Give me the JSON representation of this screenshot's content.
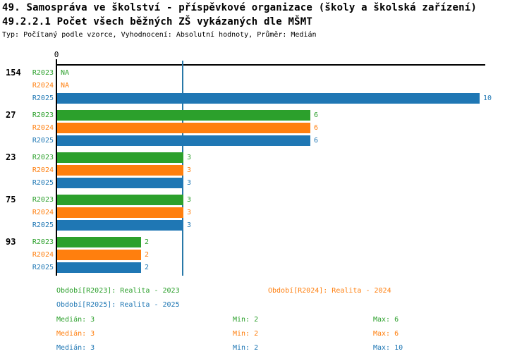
{
  "header": {
    "title_line1": "49. Samospráva ve školství - příspěvkové organizace (školy a školská zařízení)",
    "title_line2": "49.2.2.1 Počet všech běžných ZŠ vykázaných dle MŠMT",
    "meta": "Typ: Počítaný podle vzorce, Vyhodnocení: Absolutní hodnoty, Průměr: Medián"
  },
  "colors": {
    "R2023": "#2ca02c",
    "R2024": "#ff7f0e",
    "R2025": "#1f77b4",
    "axis": "#000000",
    "median_line": "#2878a8"
  },
  "chart_data": {
    "type": "bar",
    "orientation": "horizontal",
    "title": "49.2.2.1 Počet všech běžných ZŠ vykázaných dle MŠMT",
    "xlabel": "",
    "ylabel": "",
    "xlim": [
      0,
      10.15
    ],
    "axis": {
      "tick_values": [
        0
      ],
      "tick_labels": [
        "0"
      ],
      "median_line_value": 3
    },
    "na_label": "NA",
    "series_order": [
      "R2023",
      "R2024",
      "R2025"
    ],
    "groups": [
      {
        "label": "154",
        "values": {
          "R2023": null,
          "R2024": null,
          "R2025": 10
        }
      },
      {
        "label": "27",
        "values": {
          "R2023": 6,
          "R2024": 6,
          "R2025": 6
        }
      },
      {
        "label": "23",
        "values": {
          "R2023": 3,
          "R2024": 3,
          "R2025": 3
        }
      },
      {
        "label": "75",
        "values": {
          "R2023": 3,
          "R2024": 3,
          "R2025": 3
        }
      },
      {
        "label": "93",
        "values": {
          "R2023": 2,
          "R2024": 2,
          "R2025": 2
        }
      }
    ]
  },
  "legend": {
    "items": [
      {
        "series": "R2023",
        "label": "Období[R2023]: Realita - 2023"
      },
      {
        "series": "R2024",
        "label": "Období[R2024]: Realita - 2024"
      },
      {
        "series": "R2025",
        "label": "Období[R2025]: Realita - 2025"
      }
    ]
  },
  "stats": {
    "rows": [
      {
        "series": "R2023",
        "median": "Medián: 3",
        "min": "Min: 2",
        "max": "Max: 6"
      },
      {
        "series": "R2024",
        "median": "Medián: 3",
        "min": "Min: 2",
        "max": "Max: 6"
      },
      {
        "series": "R2025",
        "median": "Medián: 3",
        "min": "Min: 2",
        "max": "Max: 10"
      }
    ]
  }
}
